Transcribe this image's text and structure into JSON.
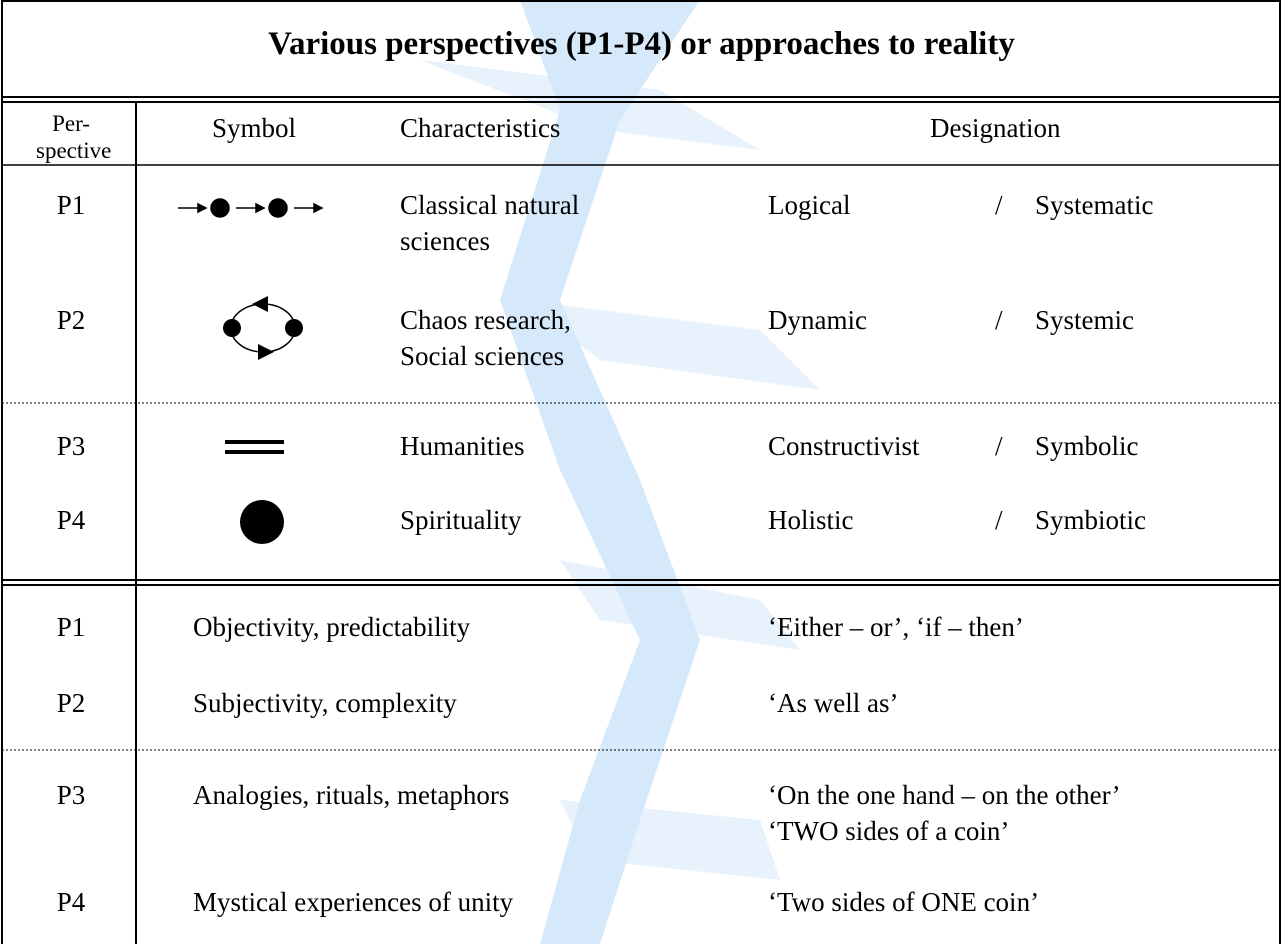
{
  "title": "Various perspectives (P1-P4) or approaches to reality",
  "header": {
    "perspective": [
      "Per-",
      "spective"
    ],
    "symbol": "Symbol",
    "characteristics": "Characteristics",
    "designation": "Designation"
  },
  "perspectives": [
    {
      "id": "P1",
      "characteristics": [
        "Classical natural",
        "sciences"
      ],
      "designation": {
        "left": "Logical",
        "separator": "/",
        "right": "Systematic"
      }
    },
    {
      "id": "P2",
      "characteristics": [
        "Chaos research,",
        "Social sciences"
      ],
      "designation": {
        "left": "Dynamic",
        "separator": "/",
        "right": "Systemic"
      }
    },
    {
      "id": "P3",
      "characteristics": [
        "Humanities"
      ],
      "designation": {
        "left": "Constructivist",
        "separator": "/",
        "right": "Symbolic"
      }
    },
    {
      "id": "P4",
      "characteristics": [
        "Spirituality"
      ],
      "designation": {
        "left": "Holistic",
        "separator": "/",
        "right": "Symbiotic"
      }
    }
  ],
  "approaches": [
    {
      "id": "P1",
      "properties": "Objectivity, predictability",
      "logic": [
        "‘Either – or’, ‘if – then’"
      ]
    },
    {
      "id": "P2",
      "properties": "Subjectivity, complexity",
      "logic": [
        "‘As well as’"
      ]
    },
    {
      "id": "P3",
      "properties": "Analogies, rituals, metaphors",
      "logic": [
        "‘On the one hand – on the other’",
        "‘TWO sides of a coin’"
      ]
    },
    {
      "id": "P4",
      "properties": "Mystical experiences of unity",
      "logic": [
        "‘Two sides of ONE coin’"
      ]
    }
  ]
}
